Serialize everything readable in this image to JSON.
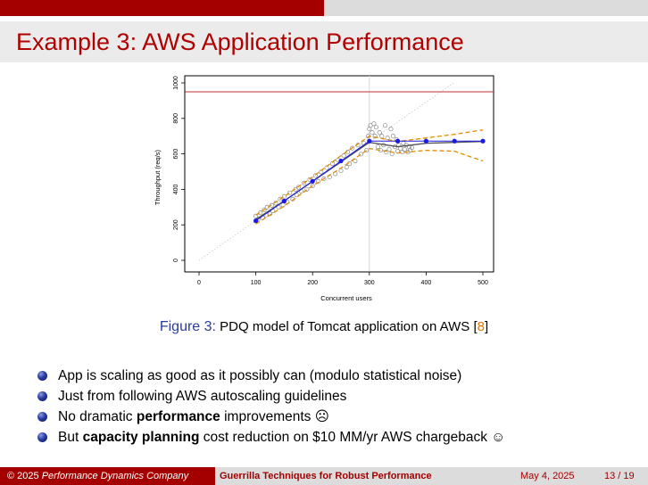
{
  "slide": {
    "title": "Example 3: AWS Application Performance"
  },
  "figure": {
    "caption_label": "Figure 3:",
    "caption_text": "PDQ model of Tomcat application on AWS [",
    "caption_ref": "8",
    "caption_end": "]"
  },
  "bullets": [
    {
      "pre": "App is scaling as good as it possibly can (modulo statistical noise)",
      "bold": "",
      "post": "",
      "emoji": ""
    },
    {
      "pre": "Just from following AWS autoscaling guidelines",
      "bold": "",
      "post": "",
      "emoji": ""
    },
    {
      "pre": "No dramatic ",
      "bold": "performance",
      "post": " improvements ",
      "emoji": "☹"
    },
    {
      "pre": "But ",
      "bold": "capacity planning",
      "post": " cost reduction on $10 MM/yr AWS chargeback ",
      "emoji": "☺"
    }
  ],
  "footer": {
    "copyright": "© 2025 ",
    "company": "Performance Dynamics Company",
    "talk": "Guerrilla Techniques for Robust Performance",
    "date": "May 4, 2025",
    "page": "13 / 19"
  },
  "chart_data": {
    "type": "scatter",
    "xlabel": "Concurrent users",
    "ylabel": "Throughput (req/s)",
    "xlim": [
      0,
      500
    ],
    "ylim": [
      0,
      1000
    ],
    "xticks": [
      0,
      100,
      200,
      300,
      400,
      500
    ],
    "yticks": [
      0,
      200,
      400,
      600,
      800,
      1000
    ],
    "hline": 950,
    "vline": 300,
    "diagonal_slope": 2.23,
    "colors": {
      "model": "#1a1ae6",
      "fit": "#555555",
      "band": "#e08a00",
      "hline": "#c03030",
      "vline": "#d8d8d8",
      "observed": "#888888"
    },
    "model": {
      "x": [
        100,
        150,
        200,
        250,
        300,
        350,
        400,
        450,
        500
      ],
      "y": [
        223,
        334,
        446,
        560,
        672,
        672,
        672,
        672,
        672
      ]
    },
    "fit": {
      "x": [
        100,
        150,
        200,
        250,
        300,
        350,
        400,
        450,
        500
      ],
      "y": [
        230,
        335,
        445,
        555,
        665,
        640,
        660,
        665,
        670
      ]
    },
    "upper_band": {
      "x": [
        100,
        150,
        200,
        250,
        300,
        350,
        400,
        450,
        500
      ],
      "y": [
        255,
        360,
        470,
        590,
        700,
        670,
        690,
        710,
        735
      ]
    },
    "lower_band": {
      "x": [
        100,
        150,
        200,
        250,
        300,
        350,
        400,
        450,
        500
      ],
      "y": [
        205,
        305,
        420,
        520,
        630,
        605,
        620,
        615,
        560
      ]
    },
    "observed": {
      "x": [
        100,
        104,
        108,
        112,
        115,
        118,
        120,
        125,
        128,
        130,
        135,
        140,
        143,
        148,
        150,
        155,
        160,
        165,
        170,
        172,
        175,
        180,
        185,
        190,
        195,
        200,
        205,
        210,
        215,
        220,
        225,
        230,
        235,
        240,
        245,
        250,
        255,
        260,
        262,
        265,
        270,
        275,
        280,
        285,
        290,
        295,
        298,
        300,
        302,
        305,
        308,
        310,
        312,
        315,
        318,
        320,
        322,
        325,
        328,
        330,
        332,
        335,
        338,
        340,
        342,
        345,
        348,
        350,
        352,
        355,
        358,
        360,
        362,
        365,
        368,
        370,
        372,
        375
      ],
      "y": [
        250,
        232,
        268,
        240,
        285,
        255,
        300,
        262,
        310,
        278,
        322,
        300,
        345,
        312,
        360,
        330,
        380,
        345,
        400,
        368,
        412,
        390,
        435,
        400,
        455,
        420,
        478,
        445,
        498,
        460,
        522,
        470,
        545,
        488,
        565,
        505,
        590,
        525,
        610,
        545,
        632,
        560,
        650,
        598,
        660,
        620,
        700,
        740,
        760,
        720,
        770,
        700,
        750,
        640,
        720,
        620,
        700,
        650,
        760,
        610,
        690,
        625,
        740,
        600,
        700,
        640,
        680,
        615,
        650,
        630,
        610,
        660,
        625,
        650,
        610,
        640,
        620,
        635
      ]
    }
  }
}
